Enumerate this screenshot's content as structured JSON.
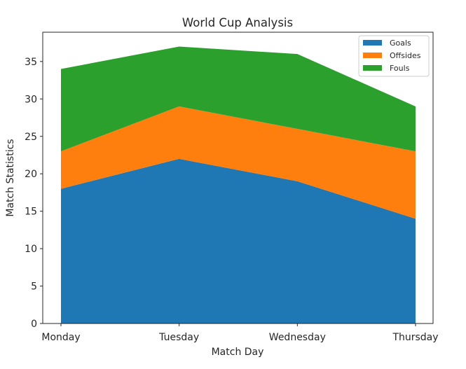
{
  "chart_data": {
    "type": "area",
    "stacked": true,
    "title": "World Cup Analysis",
    "xlabel": "Match Day",
    "ylabel": "Match Statistics",
    "categories": [
      "Monday",
      "Tuesday",
      "Wednesday",
      "Thursday"
    ],
    "series": [
      {
        "name": "Goals",
        "values": [
          18,
          22,
          19,
          14
        ],
        "color": "#1f77b4"
      },
      {
        "name": "Offsides",
        "values": [
          5,
          7,
          7,
          9
        ],
        "color": "#ff7f0e"
      },
      {
        "name": "Fouls",
        "values": [
          11,
          8,
          10,
          6
        ],
        "color": "#2ca02c"
      }
    ],
    "ylim": [
      0,
      38.85
    ],
    "yticks": [
      0,
      5,
      10,
      15,
      20,
      25,
      30,
      35
    ],
    "grid": false,
    "legend_position": "upper right"
  }
}
